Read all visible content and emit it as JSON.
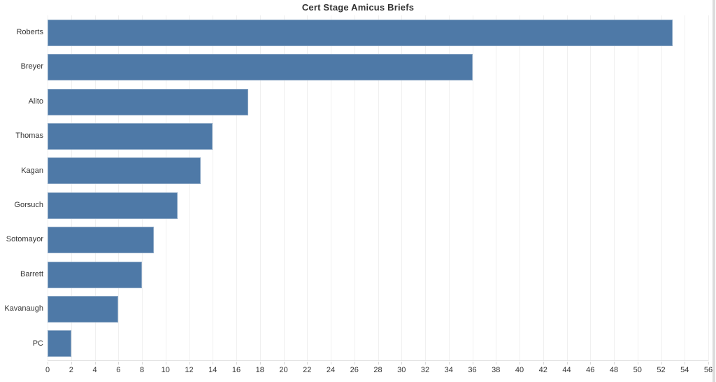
{
  "chart_data": {
    "type": "bar",
    "orientation": "horizontal",
    "title": "Cert Stage Amicus Briefs",
    "categories": [
      "Roberts",
      "Breyer",
      "Alito",
      "Thomas",
      "Kagan",
      "Gorsuch",
      "Sotomayor",
      "Barrett",
      "Kavanaugh",
      "PC"
    ],
    "values": [
      53,
      36,
      17,
      14,
      13,
      11,
      9,
      8,
      6,
      2
    ],
    "xlabel": "",
    "ylabel": "",
    "xlim": [
      0,
      56
    ],
    "x_tick_interval": 2,
    "x_ticks": [
      0,
      2,
      4,
      6,
      8,
      10,
      12,
      14,
      16,
      18,
      20,
      22,
      24,
      26,
      28,
      30,
      32,
      34,
      36,
      38,
      40,
      42,
      44,
      46,
      48,
      50,
      52,
      54,
      56
    ],
    "grid": "vertical",
    "legend": "none",
    "style": {
      "bar_color": "#4e79a7",
      "gridline_color": "#f0f0f0",
      "axis_line_color": "#e0e0e0",
      "tick_mark_color": "#d8d8d8",
      "text_color": "#333333",
      "background_color": "#ffffff",
      "scrollbar_color": "#dcdcdc"
    }
  }
}
